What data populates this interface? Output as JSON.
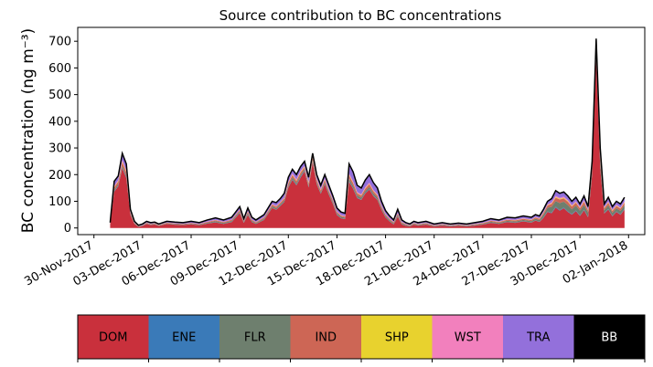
{
  "chart_data": {
    "type": "area",
    "stacked": true,
    "title": "Source contribution to BC concentrations",
    "xlabel": "",
    "ylabel": "BC concentration (ng m⁻³)",
    "ylim": [
      -25,
      752
    ],
    "yticks": [
      0,
      100,
      200,
      300,
      400,
      500,
      600,
      700
    ],
    "xlim": [
      "2017-11-29",
      "2018-01-03"
    ],
    "xticks": [
      "30-Nov-2017",
      "03-Dec-2017",
      "06-Dec-2017",
      "09-Dec-2017",
      "12-Dec-2017",
      "15-Dec-2017",
      "18-Dec-2017",
      "21-Dec-2017",
      "24-Dec-2017",
      "27-Dec-2017",
      "30-Dec-2017",
      "02-Jan-2018"
    ],
    "xtick_dates": [
      "2017-11-30",
      "2017-12-03",
      "2017-12-06",
      "2017-12-09",
      "2017-12-12",
      "2017-12-15",
      "2017-12-18",
      "2017-12-21",
      "2017-12-24",
      "2017-12-27",
      "2017-12-30",
      "2018-01-02"
    ],
    "grid": false,
    "legend_position": "bottom",
    "series": [
      {
        "name": "DOM",
        "color": "#c9303c"
      },
      {
        "name": "ENE",
        "color": "#3a7ab8"
      },
      {
        "name": "FLR",
        "color": "#6e7f6e"
      },
      {
        "name": "IND",
        "color": "#cd6655"
      },
      {
        "name": "SHP",
        "color": "#e8d22e"
      },
      {
        "name": "WST",
        "color": "#f280bd"
      },
      {
        "name": "TRA",
        "color": "#9370db"
      },
      {
        "name": "BB",
        "color": "#000000",
        "text_color": "#ffffff"
      }
    ],
    "x": [
      "2017-12-01T00:00",
      "2017-12-01T06:00",
      "2017-12-01T12:00",
      "2017-12-01T18:00",
      "2017-12-02T00:00",
      "2017-12-02T06:00",
      "2017-12-02T12:00",
      "2017-12-02T18:00",
      "2017-12-03T00:00",
      "2017-12-03T06:00",
      "2017-12-03T12:00",
      "2017-12-03T18:00",
      "2017-12-04T00:00",
      "2017-12-04T12:00",
      "2017-12-05T00:00",
      "2017-12-05T12:00",
      "2017-12-06T00:00",
      "2017-12-06T12:00",
      "2017-12-07T00:00",
      "2017-12-07T12:00",
      "2017-12-08T00:00",
      "2017-12-08T12:00",
      "2017-12-09T00:00",
      "2017-12-09T06:00",
      "2017-12-09T12:00",
      "2017-12-09T18:00",
      "2017-12-10T00:00",
      "2017-12-10T12:00",
      "2017-12-11T00:00",
      "2017-12-11T06:00",
      "2017-12-11T12:00",
      "2017-12-11T18:00",
      "2017-12-12T00:00",
      "2017-12-12T06:00",
      "2017-12-12T12:00",
      "2017-12-12T18:00",
      "2017-12-13T00:00",
      "2017-12-13T06:00",
      "2017-12-13T12:00",
      "2017-12-13T18:00",
      "2017-12-14T00:00",
      "2017-12-14T06:00",
      "2017-12-14T12:00",
      "2017-12-14T18:00",
      "2017-12-15T00:00",
      "2017-12-15T06:00",
      "2017-12-15T12:00",
      "2017-12-15T18:00",
      "2017-12-16T00:00",
      "2017-12-16T06:00",
      "2017-12-16T12:00",
      "2017-12-16T18:00",
      "2017-12-17T00:00",
      "2017-12-17T06:00",
      "2017-12-17T12:00",
      "2017-12-17T18:00",
      "2017-12-18T00:00",
      "2017-12-18T06:00",
      "2017-12-18T12:00",
      "2017-12-18T18:00",
      "2017-12-19T00:00",
      "2017-12-19T06:00",
      "2017-12-19T12:00",
      "2017-12-19T18:00",
      "2017-12-20T00:00",
      "2017-12-20T12:00",
      "2017-12-21T00:00",
      "2017-12-21T12:00",
      "2017-12-22T00:00",
      "2017-12-22T12:00",
      "2017-12-23T00:00",
      "2017-12-23T12:00",
      "2017-12-24T00:00",
      "2017-12-24T12:00",
      "2017-12-25T00:00",
      "2017-12-25T12:00",
      "2017-12-26T00:00",
      "2017-12-26T12:00",
      "2017-12-27T00:00",
      "2017-12-27T06:00",
      "2017-12-27T12:00",
      "2017-12-27T18:00",
      "2017-12-28T00:00",
      "2017-12-28T06:00",
      "2017-12-28T12:00",
      "2017-12-28T18:00",
      "2017-12-29T00:00",
      "2017-12-29T06:00",
      "2017-12-29T12:00",
      "2017-12-29T18:00",
      "2017-12-30T00:00",
      "2017-12-30T06:00",
      "2017-12-30T12:00",
      "2017-12-30T18:00",
      "2017-12-31T00:00",
      "2017-12-31T06:00",
      "2017-12-31T12:00",
      "2017-12-31T18:00",
      "2018-01-01T00:00",
      "2018-01-01T06:00",
      "2018-01-01T12:00",
      "2018-01-01T18:00"
    ],
    "total": [
      20,
      175,
      195,
      280,
      240,
      70,
      25,
      10,
      15,
      25,
      20,
      22,
      15,
      25,
      22,
      20,
      25,
      20,
      30,
      38,
      30,
      40,
      80,
      35,
      75,
      40,
      30,
      50,
      100,
      95,
      110,
      130,
      190,
      220,
      200,
      230,
      250,
      190,
      280,
      200,
      160,
      200,
      160,
      120,
      75,
      60,
      55,
      240,
      210,
      160,
      150,
      180,
      200,
      170,
      150,
      100,
      65,
      45,
      30,
      70,
      30,
      20,
      15,
      25,
      20,
      25,
      15,
      20,
      15,
      18,
      15,
      20,
      25,
      35,
      30,
      40,
      38,
      45,
      40,
      50,
      45,
      70,
      100,
      110,
      140,
      130,
      135,
      120,
      100,
      115,
      90,
      120,
      80,
      250,
      710,
      300,
      90,
      115,
      80,
      100,
      90,
      115
    ],
    "shares": {
      "DOM": [
        0.7,
        0.78,
        0.8,
        0.8,
        0.78,
        0.7,
        0.6,
        0.4,
        0.5,
        0.6,
        0.55,
        0.6,
        0.5,
        0.6,
        0.55,
        0.55,
        0.55,
        0.5,
        0.55,
        0.55,
        0.5,
        0.55,
        0.7,
        0.55,
        0.65,
        0.55,
        0.5,
        0.6,
        0.75,
        0.72,
        0.75,
        0.75,
        0.8,
        0.82,
        0.8,
        0.82,
        0.85,
        0.8,
        0.88,
        0.82,
        0.8,
        0.82,
        0.78,
        0.75,
        0.65,
        0.6,
        0.6,
        0.72,
        0.7,
        0.7,
        0.7,
        0.72,
        0.72,
        0.7,
        0.7,
        0.68,
        0.6,
        0.55,
        0.45,
        0.6,
        0.45,
        0.4,
        0.35,
        0.5,
        0.45,
        0.5,
        0.35,
        0.45,
        0.4,
        0.45,
        0.4,
        0.45,
        0.5,
        0.55,
        0.5,
        0.55,
        0.5,
        0.55,
        0.5,
        0.55,
        0.5,
        0.55,
        0.6,
        0.5,
        0.55,
        0.5,
        0.55,
        0.5,
        0.5,
        0.55,
        0.5,
        0.55,
        0.5,
        0.8,
        0.9,
        0.75,
        0.6,
        0.6,
        0.55,
        0.6,
        0.55,
        0.6
      ],
      "ENE": [
        0.02,
        0.01,
        0.01,
        0.01,
        0.01,
        0.02,
        0.02,
        0.04,
        0.03,
        0.02,
        0.03,
        0.03,
        0.03,
        0.02,
        0.02,
        0.02,
        0.02,
        0.03,
        0.02,
        0.02,
        0.02,
        0.02,
        0.02,
        0.02,
        0.02,
        0.02,
        0.02,
        0.02,
        0.01,
        0.01,
        0.01,
        0.01,
        0.01,
        0.01,
        0.01,
        0.01,
        0.01,
        0.01,
        0.01,
        0.01,
        0.01,
        0.01,
        0.01,
        0.01,
        0.02,
        0.02,
        0.02,
        0.01,
        0.01,
        0.01,
        0.01,
        0.01,
        0.01,
        0.01,
        0.01,
        0.01,
        0.02,
        0.02,
        0.03,
        0.02,
        0.03,
        0.03,
        0.04,
        0.03,
        0.03,
        0.03,
        0.04,
        0.03,
        0.03,
        0.03,
        0.03,
        0.03,
        0.03,
        0.02,
        0.02,
        0.02,
        0.02,
        0.02,
        0.02,
        0.02,
        0.02,
        0.02,
        0.02,
        0.02,
        0.02,
        0.02,
        0.02,
        0.02,
        0.02,
        0.02,
        0.02,
        0.02,
        0.02,
        0.01,
        0.01,
        0.01,
        0.02,
        0.02,
        0.02,
        0.02,
        0.02,
        0.02
      ],
      "FLR": [
        0.04,
        0.03,
        0.03,
        0.02,
        0.03,
        0.05,
        0.08,
        0.1,
        0.08,
        0.08,
        0.08,
        0.08,
        0.1,
        0.08,
        0.1,
        0.1,
        0.08,
        0.1,
        0.1,
        0.1,
        0.12,
        0.1,
        0.06,
        0.1,
        0.07,
        0.1,
        0.1,
        0.08,
        0.05,
        0.05,
        0.05,
        0.04,
        0.03,
        0.03,
        0.03,
        0.03,
        0.02,
        0.03,
        0.02,
        0.03,
        0.03,
        0.03,
        0.04,
        0.05,
        0.07,
        0.08,
        0.08,
        0.04,
        0.04,
        0.05,
        0.05,
        0.04,
        0.04,
        0.05,
        0.05,
        0.06,
        0.08,
        0.1,
        0.12,
        0.08,
        0.12,
        0.14,
        0.15,
        0.1,
        0.12,
        0.1,
        0.15,
        0.12,
        0.14,
        0.12,
        0.14,
        0.12,
        0.1,
        0.1,
        0.12,
        0.1,
        0.12,
        0.1,
        0.12,
        0.12,
        0.14,
        0.15,
        0.14,
        0.2,
        0.15,
        0.2,
        0.16,
        0.2,
        0.18,
        0.16,
        0.2,
        0.15,
        0.2,
        0.05,
        0.02,
        0.06,
        0.12,
        0.12,
        0.14,
        0.12,
        0.14,
        0.12
      ],
      "IND": [
        0.06,
        0.05,
        0.05,
        0.05,
        0.05,
        0.06,
        0.08,
        0.1,
        0.09,
        0.08,
        0.08,
        0.08,
        0.1,
        0.08,
        0.09,
        0.09,
        0.09,
        0.1,
        0.09,
        0.09,
        0.1,
        0.09,
        0.06,
        0.09,
        0.07,
        0.09,
        0.1,
        0.08,
        0.06,
        0.06,
        0.05,
        0.05,
        0.04,
        0.04,
        0.04,
        0.04,
        0.03,
        0.04,
        0.03,
        0.04,
        0.04,
        0.04,
        0.04,
        0.05,
        0.06,
        0.07,
        0.07,
        0.05,
        0.05,
        0.05,
        0.05,
        0.05,
        0.05,
        0.05,
        0.05,
        0.06,
        0.07,
        0.08,
        0.1,
        0.07,
        0.1,
        0.12,
        0.13,
        0.09,
        0.1,
        0.09,
        0.12,
        0.1,
        0.11,
        0.1,
        0.11,
        0.1,
        0.1,
        0.09,
        0.1,
        0.09,
        0.1,
        0.09,
        0.1,
        0.09,
        0.1,
        0.09,
        0.08,
        0.1,
        0.09,
        0.1,
        0.09,
        0.1,
        0.1,
        0.09,
        0.1,
        0.09,
        0.1,
        0.04,
        0.02,
        0.05,
        0.08,
        0.08,
        0.09,
        0.08,
        0.09,
        0.08
      ],
      "SHP": [
        0.01,
        0.01,
        0.01,
        0.01,
        0.01,
        0.01,
        0.01,
        0.02,
        0.01,
        0.01,
        0.01,
        0.01,
        0.02,
        0.01,
        0.01,
        0.01,
        0.01,
        0.01,
        0.01,
        0.01,
        0.01,
        0.01,
        0.01,
        0.01,
        0.01,
        0.01,
        0.01,
        0.01,
        0.01,
        0.01,
        0.01,
        0.01,
        0.01,
        0.01,
        0.01,
        0.01,
        0.01,
        0.01,
        0.01,
        0.01,
        0.01,
        0.01,
        0.01,
        0.01,
        0.01,
        0.01,
        0.01,
        0.01,
        0.01,
        0.01,
        0.01,
        0.01,
        0.01,
        0.01,
        0.01,
        0.01,
        0.01,
        0.01,
        0.02,
        0.01,
        0.02,
        0.02,
        0.02,
        0.02,
        0.02,
        0.02,
        0.02,
        0.02,
        0.02,
        0.02,
        0.02,
        0.02,
        0.02,
        0.02,
        0.02,
        0.02,
        0.02,
        0.02,
        0.02,
        0.02,
        0.02,
        0.02,
        0.02,
        0.02,
        0.02,
        0.02,
        0.02,
        0.02,
        0.02,
        0.02,
        0.02,
        0.02,
        0.02,
        0.01,
        0.01,
        0.01,
        0.02,
        0.02,
        0.02,
        0.02,
        0.02,
        0.02
      ],
      "WST": [
        0.02,
        0.02,
        0.02,
        0.02,
        0.02,
        0.02,
        0.03,
        0.04,
        0.03,
        0.03,
        0.03,
        0.03,
        0.04,
        0.03,
        0.03,
        0.03,
        0.03,
        0.04,
        0.03,
        0.03,
        0.04,
        0.03,
        0.02,
        0.03,
        0.03,
        0.03,
        0.04,
        0.03,
        0.02,
        0.02,
        0.02,
        0.02,
        0.02,
        0.02,
        0.02,
        0.02,
        0.01,
        0.02,
        0.01,
        0.02,
        0.02,
        0.02,
        0.02,
        0.02,
        0.03,
        0.03,
        0.03,
        0.02,
        0.02,
        0.02,
        0.02,
        0.02,
        0.02,
        0.02,
        0.02,
        0.02,
        0.03,
        0.03,
        0.04,
        0.03,
        0.04,
        0.04,
        0.04,
        0.03,
        0.04,
        0.03,
        0.04,
        0.04,
        0.04,
        0.04,
        0.04,
        0.04,
        0.03,
        0.03,
        0.04,
        0.03,
        0.04,
        0.03,
        0.04,
        0.03,
        0.04,
        0.03,
        0.03,
        0.03,
        0.03,
        0.03,
        0.03,
        0.03,
        0.03,
        0.03,
        0.03,
        0.03,
        0.03,
        0.02,
        0.01,
        0.02,
        0.03,
        0.03,
        0.03,
        0.03,
        0.03,
        0.03
      ],
      "TRA": [
        0.13,
        0.09,
        0.07,
        0.08,
        0.09,
        0.13,
        0.16,
        0.25,
        0.2,
        0.16,
        0.19,
        0.15,
        0.18,
        0.16,
        0.18,
        0.18,
        0.2,
        0.2,
        0.18,
        0.18,
        0.19,
        0.18,
        0.11,
        0.18,
        0.13,
        0.18,
        0.21,
        0.16,
        0.09,
        0.12,
        0.1,
        0.11,
        0.08,
        0.06,
        0.08,
        0.06,
        0.06,
        0.08,
        0.03,
        0.06,
        0.08,
        0.06,
        0.09,
        0.1,
        0.15,
        0.18,
        0.18,
        0.14,
        0.16,
        0.15,
        0.15,
        0.14,
        0.14,
        0.15,
        0.15,
        0.15,
        0.18,
        0.19,
        0.22,
        0.18,
        0.22,
        0.23,
        0.25,
        0.21,
        0.22,
        0.21,
        0.26,
        0.22,
        0.24,
        0.22,
        0.24,
        0.22,
        0.2,
        0.17,
        0.18,
        0.17,
        0.18,
        0.17,
        0.18,
        0.15,
        0.16,
        0.12,
        0.09,
        0.11,
        0.12,
        0.11,
        0.11,
        0.11,
        0.15,
        0.13,
        0.11,
        0.12,
        0.13,
        0.06,
        0.02,
        0.09,
        0.11,
        0.11,
        0.13,
        0.11,
        0.13,
        0.11
      ],
      "BB": [
        0.02,
        0.01,
        0.01,
        0.01,
        0.01,
        0.01,
        0.02,
        0.05,
        0.06,
        0.02,
        0.03,
        0.02,
        0.03,
        0.02,
        0.02,
        0.02,
        0.02,
        0.02,
        0.02,
        0.02,
        0.02,
        0.02,
        0.02,
        0.02,
        0.02,
        0.02,
        0.02,
        0.02,
        0.01,
        0.01,
        0.01,
        0.01,
        0.01,
        0.01,
        0.01,
        0.01,
        0.01,
        0.01,
        0.01,
        0.01,
        0.01,
        0.01,
        0.01,
        0.01,
        0.01,
        0.01,
        0.01,
        0.01,
        0.01,
        0.01,
        0.01,
        0.01,
        0.01,
        0.01,
        0.01,
        0.01,
        0.01,
        0.02,
        0.02,
        0.01,
        0.02,
        0.02,
        0.02,
        0.02,
        0.02,
        0.02,
        0.02,
        0.02,
        0.02,
        0.02,
        0.02,
        0.02,
        0.02,
        0.02,
        0.02,
        0.02,
        0.02,
        0.02,
        0.02,
        0.02,
        0.02,
        0.02,
        0.02,
        0.02,
        0.02,
        0.02,
        0.02,
        0.02,
        0.02,
        0.02,
        0.02,
        0.02,
        0.02,
        0.01,
        0.01,
        0.01,
        0.02,
        0.02,
        0.02,
        0.02,
        0.02,
        0.02
      ]
    }
  }
}
